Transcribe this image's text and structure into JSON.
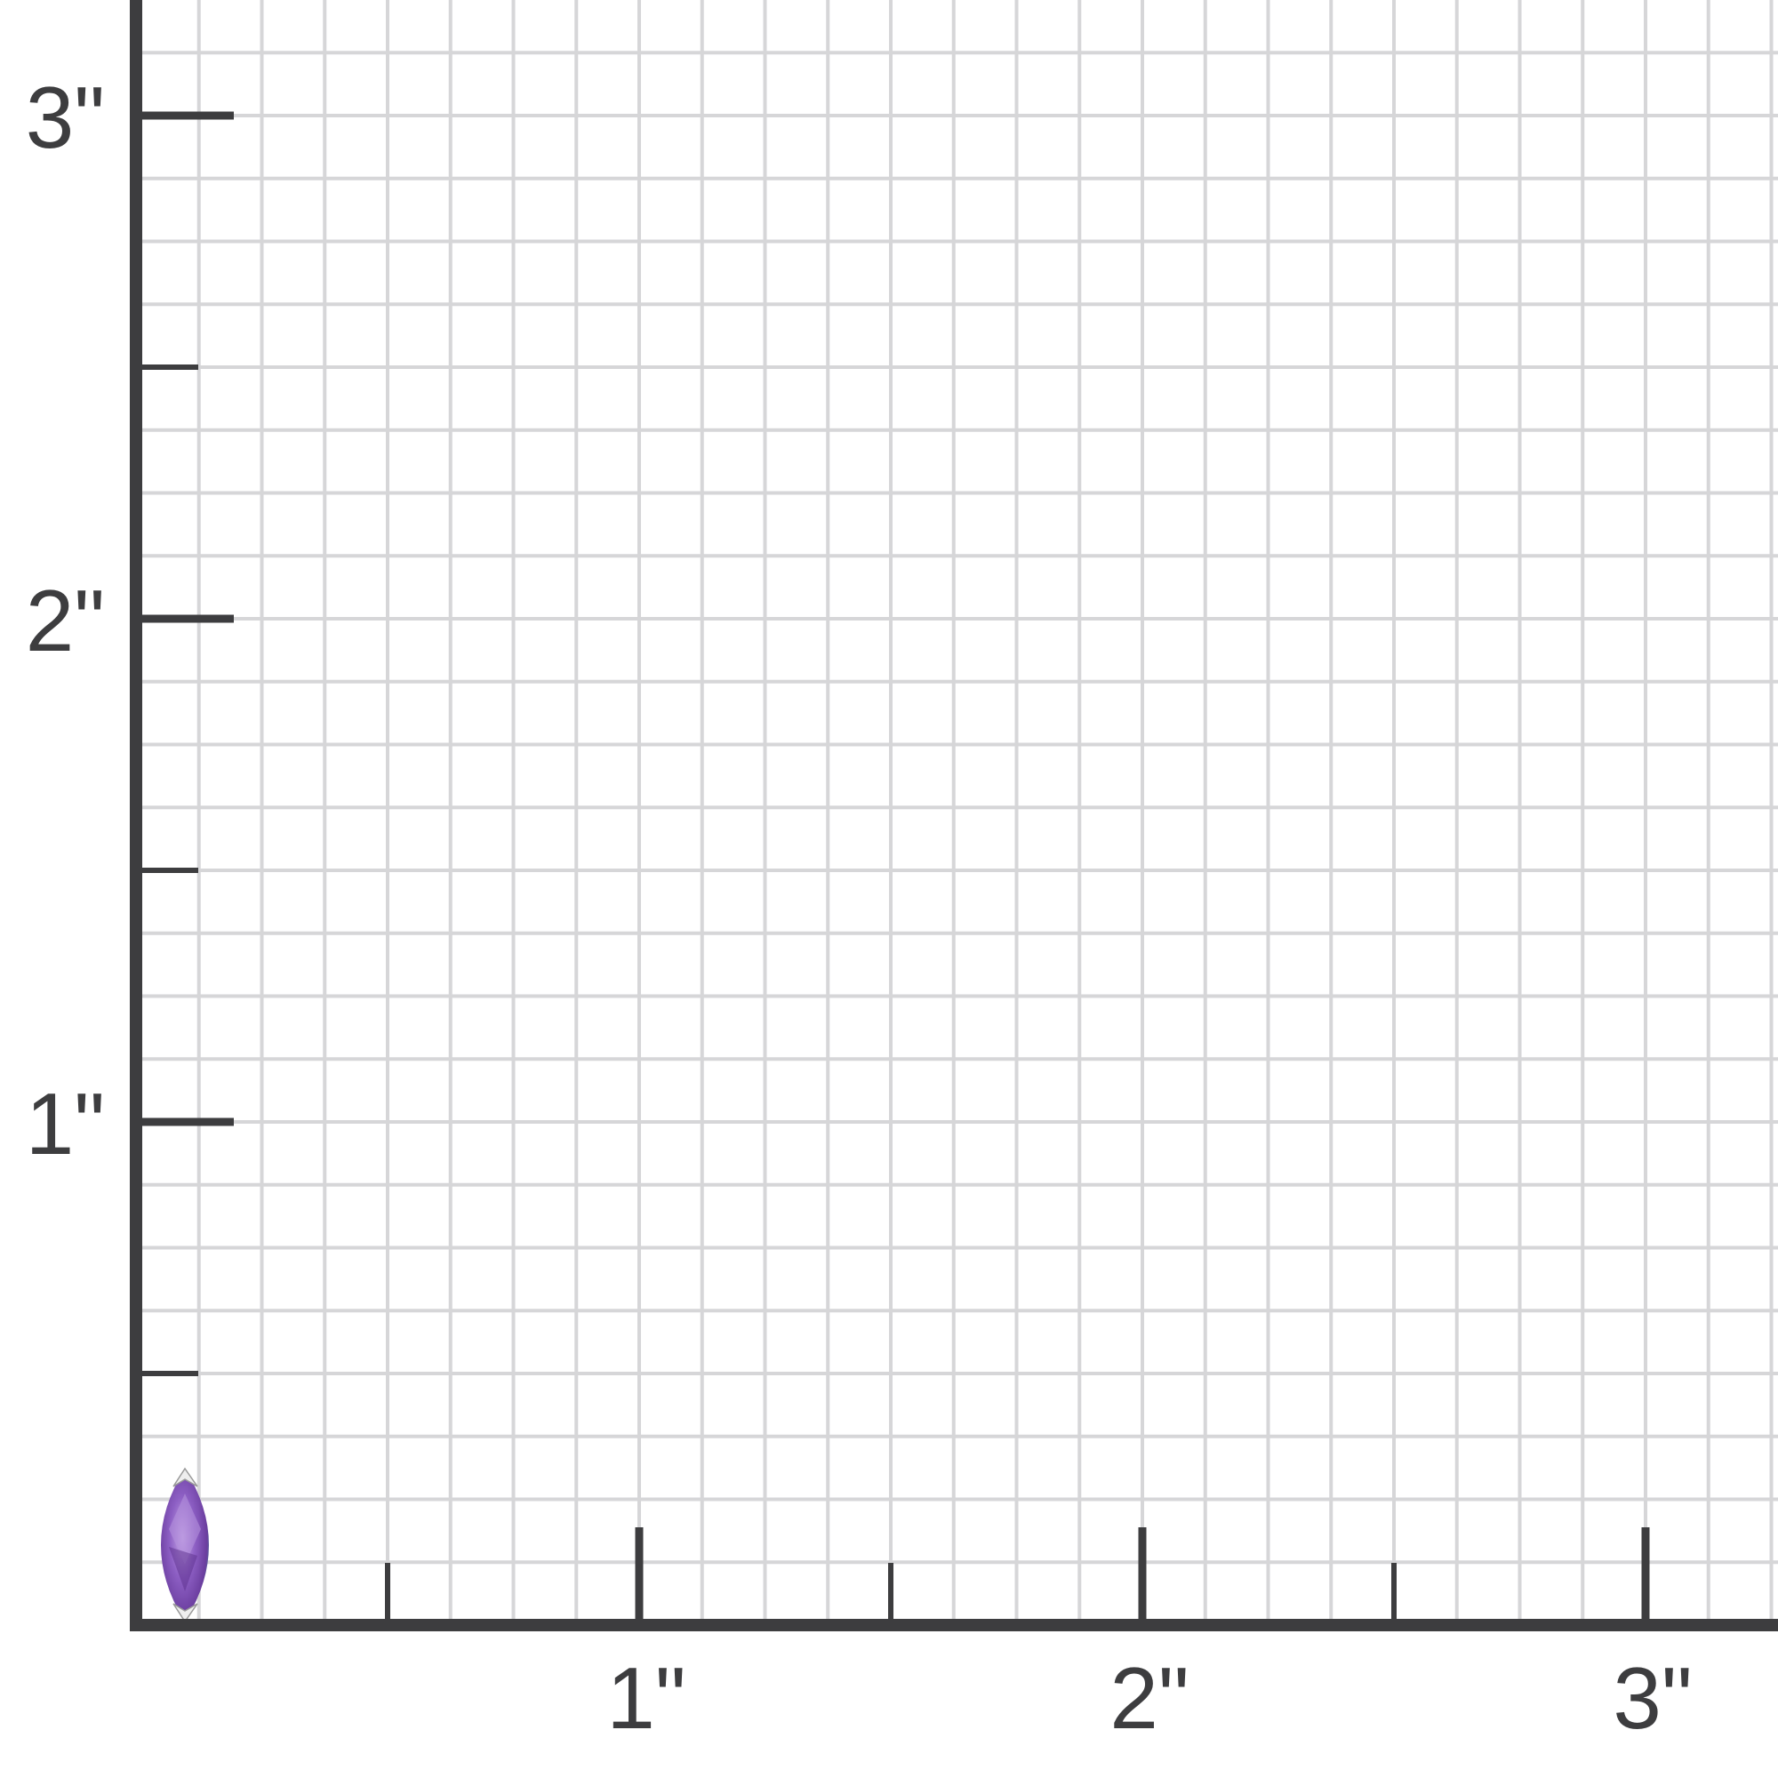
{
  "scale": {
    "unit_mark": "\"",
    "x_labels": [
      "1\"",
      "2\"",
      "3\""
    ],
    "y_labels": [
      "1\"",
      "2\"",
      "3\""
    ],
    "x_range_in": [
      0,
      3.2
    ],
    "y_range_in": [
      0,
      3.2
    ],
    "grid_step_in": 0.125,
    "minor_tick_step_in": 0.5,
    "major_tick_step_in": 1
  },
  "colors": {
    "axis": "#3d3d3f",
    "grid": "#d6d6d8",
    "gem": "#8a5cc0",
    "background": "#ffffff"
  },
  "gem": {
    "name": "marquise-gemstone",
    "shape": "marquise"
  }
}
